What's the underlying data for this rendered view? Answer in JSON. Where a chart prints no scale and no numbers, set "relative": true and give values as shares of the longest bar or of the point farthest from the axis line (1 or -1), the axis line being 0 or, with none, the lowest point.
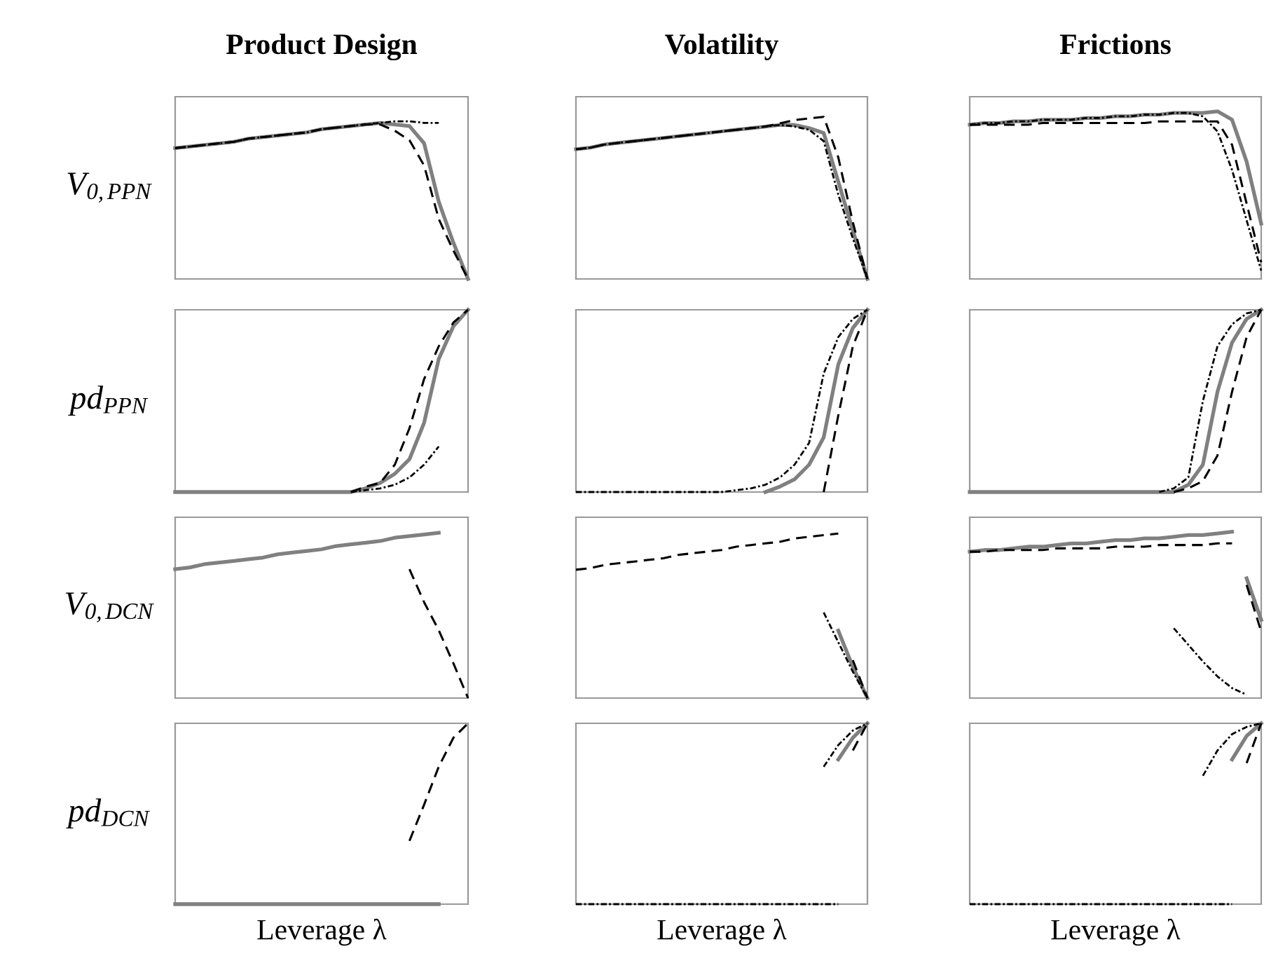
{
  "chart_data": [
    {
      "type": "line",
      "relative": true,
      "title": "Product Design",
      "ylabel": "V$_{0,PPN}$",
      "categories": [
        null,
        null,
        null,
        null,
        null,
        null,
        null,
        null,
        null,
        null,
        null,
        null,
        null,
        null,
        null,
        null,
        null,
        null,
        null,
        null,
        null
      ],
      "series": [
        {
          "color": "#808080",
          "line_style": "solid",
          "values": [
            0.83,
            0.84,
            0.85,
            0.86,
            0.87,
            0.89,
            0.9,
            0.91,
            0.92,
            0.93,
            0.95,
            0.96,
            0.97,
            0.98,
            0.99,
            0.98,
            0.97,
            0.86,
            0.49,
            0.23,
            0
          ]
        },
        {
          "color": "#000000",
          "line_style": "dashed",
          "values": [
            0.83,
            0.84,
            0.85,
            0.86,
            0.87,
            0.89,
            0.9,
            0.91,
            0.92,
            0.93,
            0.95,
            0.96,
            0.97,
            0.98,
            0.98,
            0.94,
            0.88,
            0.72,
            0.38,
            0.18,
            0
          ]
        },
        {
          "color": "#000000",
          "line_style": "dotted",
          "values": [
            0.83,
            0.84,
            0.85,
            0.86,
            0.87,
            0.89,
            0.9,
            0.91,
            0.92,
            0.93,
            0.95,
            0.96,
            0.97,
            0.98,
            0.99,
            1.0,
            1.0,
            0.99,
            0.99,
            null,
            null
          ]
        }
      ]
    },
    {
      "type": "line",
      "relative": true,
      "title": "Volatility",
      "categories": [
        null,
        null,
        null,
        null,
        null,
        null,
        null,
        null,
        null,
        null,
        null,
        null,
        null,
        null,
        null,
        null,
        null,
        null,
        null,
        null,
        null
      ],
      "series": [
        {
          "color": "#808080",
          "line_style": "solid",
          "values": [
            0.8,
            0.81,
            0.83,
            0.84,
            0.85,
            0.86,
            0.87,
            0.88,
            0.89,
            0.9,
            0.91,
            0.92,
            0.93,
            0.94,
            0.95,
            0.95,
            0.93,
            0.9,
            0.6,
            0.3,
            0
          ]
        },
        {
          "color": "#000000",
          "line_style": "dashed",
          "values": [
            0.8,
            0.81,
            0.83,
            0.84,
            0.85,
            0.86,
            0.87,
            0.88,
            0.89,
            0.9,
            0.91,
            0.92,
            0.93,
            0.94,
            0.96,
            0.98,
            0.99,
            1.0,
            0.75,
            0.35,
            0
          ]
        },
        {
          "color": "#000000",
          "line_style": "dotted",
          "values": [
            0.8,
            0.81,
            0.83,
            0.84,
            0.85,
            0.86,
            0.87,
            0.88,
            0.89,
            0.9,
            0.91,
            0.92,
            0.93,
            0.94,
            0.95,
            0.94,
            0.92,
            0.85,
            0.52,
            0.25,
            0
          ]
        }
      ]
    },
    {
      "type": "line",
      "relative": true,
      "title": "Frictions",
      "categories": [
        null,
        null,
        null,
        null,
        null,
        null,
        null,
        null,
        null,
        null,
        null,
        null,
        null,
        null,
        null,
        null,
        null,
        null,
        null,
        null,
        null
      ],
      "series": [
        {
          "color": "#808080",
          "line_style": "solid",
          "values": [
            0.92,
            0.93,
            0.93,
            0.94,
            0.94,
            0.95,
            0.95,
            0.95,
            0.96,
            0.96,
            0.97,
            0.97,
            0.98,
            0.98,
            0.99,
            0.99,
            0.99,
            1.0,
            0.95,
            0.7,
            0.33
          ]
        },
        {
          "color": "#000000",
          "line_style": "dashed",
          "values": [
            0.92,
            0.92,
            0.92,
            0.92,
            0.92,
            0.93,
            0.93,
            0.93,
            0.93,
            0.93,
            0.93,
            0.93,
            0.93,
            0.94,
            0.94,
            0.94,
            0.94,
            0.94,
            0.8,
            0.45,
            0.1
          ]
        },
        {
          "color": "#000000",
          "line_style": "dotted",
          "values": [
            0.92,
            0.93,
            0.93,
            0.94,
            0.94,
            0.95,
            0.95,
            0.95,
            0.96,
            0.96,
            0.97,
            0.97,
            0.98,
            0.98,
            0.99,
            0.99,
            0.97,
            0.88,
            0.65,
            0.35,
            0.05
          ]
        }
      ]
    },
    {
      "type": "line",
      "relative": true,
      "ylabel": "pd$_{PPN}$",
      "categories": [
        null,
        null,
        null,
        null,
        null,
        null,
        null,
        null,
        null,
        null,
        null,
        null,
        null,
        null,
        null,
        null,
        null,
        null,
        null,
        null,
        null
      ],
      "series": [
        {
          "color": "#808080",
          "line_style": "solid",
          "values": [
            0,
            0,
            0,
            0,
            0,
            0,
            0,
            0,
            0,
            0,
            0,
            0,
            0,
            0.02,
            0.05,
            0.1,
            0.18,
            0.38,
            0.73,
            0.91,
            1
          ]
        },
        {
          "color": "#000000",
          "line_style": "dashed",
          "values": [
            null,
            null,
            null,
            null,
            null,
            null,
            null,
            null,
            null,
            null,
            null,
            null,
            0,
            0.03,
            0.05,
            0.15,
            0.35,
            0.62,
            0.8,
            0.93,
            1
          ]
        },
        {
          "color": "#000000",
          "line_style": "dotted",
          "values": [
            null,
            null,
            null,
            null,
            null,
            null,
            null,
            null,
            null,
            null,
            null,
            null,
            0,
            0.01,
            0.02,
            0.04,
            0.08,
            0.15,
            0.25,
            null,
            null
          ]
        }
      ]
    },
    {
      "type": "line",
      "relative": true,
      "categories": [
        null,
        null,
        null,
        null,
        null,
        null,
        null,
        null,
        null,
        null,
        null,
        null,
        null,
        null,
        null,
        null,
        null,
        null,
        null,
        null,
        null
      ],
      "series": [
        {
          "color": "#808080",
          "line_style": "solid",
          "values": [
            null,
            null,
            null,
            null,
            null,
            null,
            null,
            null,
            null,
            null,
            null,
            null,
            null,
            0,
            0.03,
            0.07,
            0.15,
            0.3,
            0.7,
            0.9,
            1
          ]
        },
        {
          "color": "#000000",
          "line_style": "dashed",
          "values": [
            null,
            null,
            null,
            null,
            null,
            null,
            null,
            null,
            null,
            null,
            null,
            null,
            null,
            null,
            null,
            null,
            null,
            0,
            0.42,
            0.8,
            1
          ]
        },
        {
          "color": "#000000",
          "line_style": "dotted",
          "values": [
            0,
            0,
            0,
            0,
            0,
            0,
            0,
            0,
            0,
            0,
            0,
            0.01,
            0.02,
            0.04,
            0.08,
            0.15,
            0.27,
            0.65,
            0.85,
            0.95,
            1
          ]
        }
      ]
    },
    {
      "type": "line",
      "relative": true,
      "categories": [
        null,
        null,
        null,
        null,
        null,
        null,
        null,
        null,
        null,
        null,
        null,
        null,
        null,
        null,
        null,
        null,
        null,
        null,
        null,
        null,
        null
      ],
      "series": [
        {
          "color": "#808080",
          "line_style": "solid",
          "values": [
            0,
            0,
            0,
            0,
            0,
            0,
            0,
            0,
            0,
            0,
            0,
            0,
            0,
            0,
            0,
            0.04,
            0.15,
            0.55,
            0.82,
            0.95,
            1
          ]
        },
        {
          "color": "#000000",
          "line_style": "dashed",
          "values": [
            null,
            null,
            null,
            null,
            null,
            null,
            null,
            null,
            null,
            null,
            null,
            null,
            null,
            null,
            0,
            0.02,
            0.06,
            0.2,
            0.55,
            0.85,
            1
          ]
        },
        {
          "color": "#000000",
          "line_style": "dotted",
          "values": [
            null,
            null,
            null,
            null,
            null,
            null,
            null,
            null,
            null,
            null,
            null,
            null,
            null,
            0,
            0.02,
            0.08,
            0.5,
            0.8,
            0.92,
            0.98,
            1
          ]
        }
      ]
    },
    {
      "type": "line",
      "relative": true,
      "ylabel": "V$_{0,DCN}$",
      "categories": [
        null,
        null,
        null,
        null,
        null,
        null,
        null,
        null,
        null,
        null,
        null,
        null,
        null,
        null,
        null,
        null,
        null,
        null,
        null,
        null,
        null
      ],
      "series": [
        {
          "color": "#808080",
          "line_style": "solid",
          "values": [
            0.78,
            0.79,
            0.81,
            0.82,
            0.83,
            0.84,
            0.85,
            0.87,
            0.88,
            0.89,
            0.9,
            0.92,
            0.93,
            0.94,
            0.95,
            0.97,
            0.98,
            0.99,
            1.0,
            null,
            null
          ]
        },
        {
          "color": "#000000",
          "line_style": "dashed",
          "values": [
            null,
            null,
            null,
            null,
            null,
            null,
            null,
            null,
            null,
            null,
            null,
            null,
            null,
            null,
            null,
            null,
            0.78,
            0.58,
            0.41,
            0.21,
            0
          ]
        }
      ]
    },
    {
      "type": "line",
      "relative": true,
      "categories": [
        null,
        null,
        null,
        null,
        null,
        null,
        null,
        null,
        null,
        null,
        null,
        null,
        null,
        null,
        null,
        null,
        null,
        null,
        null,
        null,
        null
      ],
      "series": [
        {
          "color": "#000000",
          "line_style": "dashed",
          "values": [
            0.78,
            0.79,
            0.81,
            0.82,
            0.83,
            0.84,
            0.85,
            0.87,
            0.88,
            0.89,
            0.9,
            0.92,
            0.93,
            0.94,
            0.95,
            0.97,
            0.98,
            0.99,
            1.0,
            null,
            null
          ]
        },
        {
          "color": "#808080",
          "line_style": "solid",
          "values": [
            null,
            null,
            null,
            null,
            null,
            null,
            null,
            null,
            null,
            null,
            null,
            null,
            null,
            null,
            null,
            null,
            null,
            null,
            0.41,
            0.19,
            0
          ]
        },
        {
          "color": "#000000",
          "line_style": "dashed",
          "values": [
            null,
            null,
            null,
            null,
            null,
            null,
            null,
            null,
            null,
            null,
            null,
            null,
            null,
            null,
            null,
            null,
            null,
            null,
            null,
            0.23,
            0
          ]
        },
        {
          "color": "#000000",
          "line_style": "dotted",
          "values": [
            null,
            null,
            null,
            null,
            null,
            null,
            null,
            null,
            null,
            null,
            null,
            null,
            null,
            null,
            null,
            null,
            null,
            0.52,
            0.34,
            0.16,
            0
          ]
        }
      ]
    },
    {
      "type": "line",
      "relative": true,
      "categories": [
        null,
        null,
        null,
        null,
        null,
        null,
        null,
        null,
        null,
        null,
        null,
        null,
        null,
        null,
        null,
        null,
        null,
        null,
        null,
        null,
        null
      ],
      "series": [
        {
          "color": "#808080",
          "line_style": "solid",
          "values": [
            0.88,
            0.89,
            0.89,
            0.9,
            0.91,
            0.91,
            0.92,
            0.93,
            0.93,
            0.94,
            0.95,
            0.95,
            0.96,
            0.96,
            0.97,
            0.98,
            0.98,
            0.99,
            1.0,
            null,
            null
          ]
        },
        {
          "color": "#000000",
          "line_style": "dashed",
          "values": [
            0.88,
            0.88,
            0.89,
            0.89,
            0.89,
            0.89,
            0.9,
            0.9,
            0.9,
            0.9,
            0.91,
            0.91,
            0.91,
            0.92,
            0.92,
            0.92,
            0.92,
            0.93,
            0.93,
            null,
            null
          ]
        },
        {
          "color": "#808080",
          "line_style": "solid",
          "values": [
            null,
            null,
            null,
            null,
            null,
            null,
            null,
            null,
            null,
            null,
            null,
            null,
            null,
            null,
            null,
            null,
            null,
            null,
            null,
            0.72,
            0.47
          ]
        },
        {
          "color": "#000000",
          "line_style": "dashed",
          "values": [
            null,
            null,
            null,
            null,
            null,
            null,
            null,
            null,
            null,
            null,
            null,
            null,
            null,
            null,
            null,
            null,
            null,
            null,
            null,
            0.68,
            0.4
          ]
        },
        {
          "color": "#000000",
          "line_style": "dotted",
          "values": [
            null,
            null,
            null,
            null,
            null,
            null,
            null,
            null,
            null,
            null,
            null,
            null,
            null,
            null,
            0.42,
            0.32,
            0.22,
            0.13,
            0.06,
            0.02,
            null
          ]
        }
      ]
    },
    {
      "type": "line",
      "relative": true,
      "ylabel": "pd$_{DCN}$",
      "xlabel": "Leverage λ",
      "categories": [
        null,
        null,
        null,
        null,
        null,
        null,
        null,
        null,
        null,
        null,
        null,
        null,
        null,
        null,
        null,
        null,
        null,
        null,
        null,
        null,
        null
      ],
      "series": [
        {
          "color": "#808080",
          "line_style": "solid",
          "values": [
            0,
            0,
            0,
            0,
            0,
            0,
            0,
            0,
            0,
            0,
            0,
            0,
            0,
            0,
            0,
            0,
            0,
            0,
            0,
            null,
            null
          ]
        },
        {
          "color": "#000000",
          "line_style": "dashed",
          "values": [
            null,
            null,
            null,
            null,
            null,
            null,
            null,
            null,
            null,
            null,
            null,
            null,
            null,
            null,
            null,
            null,
            0.35,
            0.55,
            0.76,
            0.92,
            1
          ]
        }
      ]
    },
    {
      "type": "line",
      "relative": true,
      "xlabel": "Leverage λ",
      "categories": [
        null,
        null,
        null,
        null,
        null,
        null,
        null,
        null,
        null,
        null,
        null,
        null,
        null,
        null,
        null,
        null,
        null,
        null,
        null,
        null,
        null
      ],
      "series": [
        {
          "color": "#000000",
          "line_style": "dotted",
          "values": [
            0,
            0,
            0,
            0,
            0,
            0,
            0,
            0,
            0,
            0,
            0,
            0,
            0,
            0,
            0,
            0,
            0,
            0,
            0,
            null,
            null
          ]
        },
        {
          "color": "#808080",
          "line_style": "solid",
          "values": [
            null,
            null,
            null,
            null,
            null,
            null,
            null,
            null,
            null,
            null,
            null,
            null,
            null,
            null,
            null,
            null,
            null,
            null,
            0.8,
            0.92,
            1
          ]
        },
        {
          "color": "#000000",
          "line_style": "dashed",
          "values": [
            null,
            null,
            null,
            null,
            null,
            null,
            null,
            null,
            null,
            null,
            null,
            null,
            null,
            null,
            null,
            null,
            null,
            null,
            null,
            0.85,
            1
          ]
        },
        {
          "color": "#000000",
          "line_style": "dotted",
          "values": [
            null,
            null,
            null,
            null,
            null,
            null,
            null,
            null,
            null,
            null,
            null,
            null,
            null,
            null,
            null,
            null,
            null,
            0.76,
            0.88,
            0.96,
            1
          ]
        }
      ]
    },
    {
      "type": "line",
      "relative": true,
      "xlabel": "Leverage λ",
      "categories": [
        null,
        null,
        null,
        null,
        null,
        null,
        null,
        null,
        null,
        null,
        null,
        null,
        null,
        null,
        null,
        null,
        null,
        null,
        null,
        null,
        null
      ],
      "series": [
        {
          "color": "#000000",
          "line_style": "dotted",
          "values": [
            0,
            0,
            0,
            0,
            0,
            0,
            0,
            0,
            0,
            0,
            0,
            0,
            0,
            0,
            0,
            0,
            0,
            0,
            0,
            null,
            null
          ]
        },
        {
          "color": "#808080",
          "line_style": "solid",
          "values": [
            null,
            null,
            null,
            null,
            null,
            null,
            null,
            null,
            null,
            null,
            null,
            null,
            null,
            null,
            null,
            null,
            null,
            null,
            0.8,
            0.93,
            1
          ]
        },
        {
          "color": "#000000",
          "line_style": "dashed",
          "values": [
            null,
            null,
            null,
            null,
            null,
            null,
            null,
            null,
            null,
            null,
            null,
            null,
            null,
            null,
            null,
            null,
            null,
            null,
            null,
            0.78,
            1
          ]
        },
        {
          "color": "#000000",
          "line_style": "dotted",
          "values": [
            null,
            null,
            null,
            null,
            null,
            null,
            null,
            null,
            null,
            null,
            null,
            null,
            null,
            null,
            null,
            null,
            0.71,
            0.85,
            0.94,
            0.98,
            1
          ]
        }
      ]
    }
  ]
}
